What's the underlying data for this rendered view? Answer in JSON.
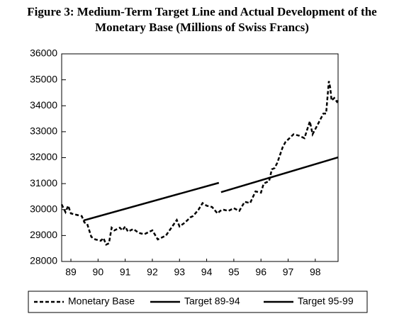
{
  "chart_data": {
    "type": "line",
    "title": [
      "Figure 3: Medium-Term Target Line and Actual Development of the",
      "Monetary Base (Millions of Swiss Francs)"
    ],
    "xlim": [
      1989.16,
      1999.34
    ],
    "xticks": [
      {
        "value": 1989.5,
        "label": "89"
      },
      {
        "value": 1990.5,
        "label": "90"
      },
      {
        "value": 1991.5,
        "label": "91"
      },
      {
        "value": 1992.5,
        "label": "92"
      },
      {
        "value": 1993.5,
        "label": "93"
      },
      {
        "value": 1994.5,
        "label": "94"
      },
      {
        "value": 1995.5,
        "label": "95"
      },
      {
        "value": 1996.5,
        "label": "96"
      },
      {
        "value": 1997.5,
        "label": "97"
      },
      {
        "value": 1998.5,
        "label": "98"
      }
    ],
    "ylim": [
      28000,
      36000
    ],
    "yticks": [
      28000,
      29000,
      30000,
      31000,
      32000,
      33000,
      34000,
      35000,
      36000
    ],
    "grid": false,
    "legend": "bottom",
    "series": [
      {
        "name": "Monetary Base",
        "color": "#000000",
        "dash": true,
        "x": [
          1989.16,
          1989.3,
          1989.4,
          1989.5,
          1989.7,
          1989.9,
          1990.0,
          1990.1,
          1990.25,
          1990.4,
          1990.6,
          1990.7,
          1990.8,
          1990.9,
          1991.0,
          1991.1,
          1991.3,
          1991.4,
          1991.5,
          1991.6,
          1991.8,
          1992.0,
          1992.2,
          1992.4,
          1992.5,
          1992.7,
          1992.9,
          1993.0,
          1993.2,
          1993.4,
          1993.5,
          1993.7,
          1993.9,
          1994.0,
          1994.2,
          1994.35,
          1994.5,
          1994.7,
          1994.9,
          1995.0,
          1995.1,
          1995.3,
          1995.5,
          1995.7,
          1995.9,
          1996.1,
          1996.3,
          1996.5,
          1996.6,
          1996.8,
          1996.9,
          1997.0,
          1997.1,
          1997.3,
          1997.4,
          1997.6,
          1997.7,
          1997.9,
          1998.0,
          1998.1,
          1998.3,
          1998.4,
          1998.6,
          1998.8,
          1998.9,
          1999.0,
          1999.05,
          1999.1,
          1999.2,
          1999.3,
          1999.34
        ],
        "values": [
          30200,
          29900,
          30150,
          29850,
          29800,
          29750,
          29500,
          29450,
          28950,
          28850,
          28800,
          28900,
          28650,
          28700,
          29300,
          29200,
          29300,
          29200,
          29350,
          29150,
          29250,
          29100,
          29050,
          29150,
          29200,
          28850,
          28950,
          29000,
          29300,
          29600,
          29350,
          29500,
          29700,
          29750,
          30000,
          30250,
          30150,
          30100,
          29850,
          29950,
          30000,
          29950,
          30050,
          29950,
          30300,
          30250,
          30700,
          30650,
          31000,
          31100,
          31550,
          31600,
          31800,
          32400,
          32600,
          32800,
          32900,
          32850,
          32800,
          32750,
          33400,
          32900,
          33300,
          33700,
          33700,
          34950,
          34700,
          34200,
          34300,
          34150,
          34200
        ]
      },
      {
        "name": "Target 89-94",
        "color": "#000000",
        "dash": false,
        "x": [
          1989.97,
          1994.95
        ],
        "values": [
          29580,
          31030
        ]
      },
      {
        "name": "Target 95-99",
        "color": "#000000",
        "dash": false,
        "x": [
          1995.03,
          1999.34
        ],
        "values": [
          30670,
          32010
        ]
      }
    ]
  }
}
